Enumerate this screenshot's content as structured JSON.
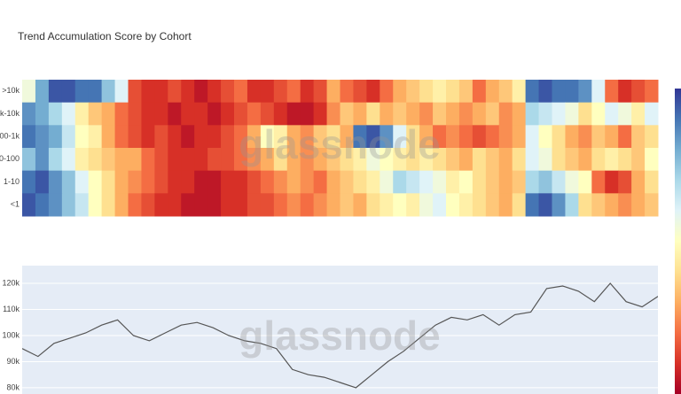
{
  "chart_data": [
    {
      "type": "heatmap",
      "title": "Trend Accumulation Score by Cohort",
      "categories": [
        ">10k",
        "1k-10k",
        "100-1k",
        "10-100",
        "1-10",
        "<1"
      ],
      "colorscale": [
        "#a50026",
        "#d73027",
        "#f46d43",
        "#fdae61",
        "#fee090",
        "#ffffbf",
        "#e0f3f8",
        "#abd9e9",
        "#74add1",
        "#4575b4",
        "#313695"
      ],
      "zlim": [
        0,
        1
      ],
      "watermark": "glassnode",
      "values": [
        [
          0.55,
          0.8,
          0.95,
          0.95,
          0.9,
          0.9,
          0.75,
          0.6,
          0.15,
          0.1,
          0.1,
          0.15,
          0.1,
          0.05,
          0.1,
          0.15,
          0.2,
          0.1,
          0.1,
          0.15,
          0.2,
          0.1,
          0.15,
          0.3,
          0.2,
          0.15,
          0.1,
          0.2,
          0.3,
          0.35,
          0.4,
          0.45,
          0.4,
          0.35,
          0.2,
          0.3,
          0.35,
          0.45,
          0.9,
          0.95,
          0.9,
          0.9,
          0.85,
          0.6,
          0.2,
          0.1,
          0.15,
          0.2
        ],
        [
          0.85,
          0.8,
          0.7,
          0.6,
          0.45,
          0.35,
          0.3,
          0.2,
          0.15,
          0.1,
          0.1,
          0.05,
          0.1,
          0.1,
          0.05,
          0.1,
          0.15,
          0.2,
          0.15,
          0.1,
          0.05,
          0.05,
          0.1,
          0.25,
          0.35,
          0.3,
          0.4,
          0.3,
          0.35,
          0.3,
          0.25,
          0.35,
          0.3,
          0.25,
          0.3,
          0.35,
          0.25,
          0.3,
          0.7,
          0.65,
          0.6,
          0.55,
          0.4,
          0.5,
          0.6,
          0.55,
          0.45,
          0.6
        ],
        [
          0.9,
          0.85,
          0.8,
          0.65,
          0.5,
          0.45,
          0.3,
          0.2,
          0.15,
          0.1,
          0.15,
          0.1,
          0.05,
          0.1,
          0.1,
          0.15,
          0.2,
          0.3,
          0.5,
          0.45,
          0.3,
          0.25,
          0.35,
          0.4,
          0.3,
          0.9,
          0.95,
          0.85,
          0.6,
          0.4,
          0.3,
          0.2,
          0.25,
          0.2,
          0.15,
          0.2,
          0.25,
          0.3,
          0.6,
          0.5,
          0.4,
          0.3,
          0.25,
          0.35,
          0.3,
          0.2,
          0.35,
          0.4
        ],
        [
          0.75,
          0.85,
          0.7,
          0.6,
          0.45,
          0.4,
          0.35,
          0.3,
          0.3,
          0.2,
          0.15,
          0.1,
          0.1,
          0.1,
          0.15,
          0.15,
          0.2,
          0.25,
          0.3,
          0.4,
          0.3,
          0.25,
          0.3,
          0.35,
          0.4,
          0.45,
          0.55,
          0.5,
          0.45,
          0.4,
          0.45,
          0.4,
          0.35,
          0.3,
          0.4,
          0.35,
          0.3,
          0.4,
          0.6,
          0.55,
          0.4,
          0.35,
          0.3,
          0.4,
          0.45,
          0.4,
          0.35,
          0.5
        ],
        [
          0.9,
          0.95,
          0.85,
          0.75,
          0.6,
          0.5,
          0.4,
          0.3,
          0.25,
          0.2,
          0.15,
          0.1,
          0.1,
          0.05,
          0.05,
          0.1,
          0.1,
          0.15,
          0.2,
          0.25,
          0.3,
          0.25,
          0.2,
          0.3,
          0.35,
          0.4,
          0.45,
          0.55,
          0.7,
          0.65,
          0.6,
          0.55,
          0.45,
          0.5,
          0.4,
          0.35,
          0.3,
          0.35,
          0.7,
          0.75,
          0.65,
          0.55,
          0.5,
          0.2,
          0.1,
          0.15,
          0.3,
          0.4
        ],
        [
          0.95,
          0.9,
          0.85,
          0.75,
          0.65,
          0.5,
          0.4,
          0.3,
          0.2,
          0.15,
          0.1,
          0.1,
          0.05,
          0.05,
          0.05,
          0.1,
          0.1,
          0.15,
          0.15,
          0.2,
          0.25,
          0.2,
          0.25,
          0.3,
          0.35,
          0.3,
          0.4,
          0.45,
          0.5,
          0.45,
          0.55,
          0.6,
          0.5,
          0.45,
          0.4,
          0.35,
          0.3,
          0.4,
          0.9,
          0.95,
          0.85,
          0.7,
          0.4,
          0.35,
          0.3,
          0.25,
          0.3,
          0.35
        ]
      ]
    },
    {
      "type": "line",
      "color": "#555555",
      "watermark": "glassnode",
      "grid": true,
      "values": [
        95000,
        92000,
        97000,
        99000,
        101000,
        104000,
        106000,
        100000,
        98000,
        101000,
        104000,
        105000,
        103000,
        100000,
        98000,
        97000,
        95000,
        87000,
        85000,
        84000,
        82000,
        80000,
        85000,
        90000,
        94000,
        99000,
        104000,
        107000,
        106000,
        108000,
        104000,
        108000,
        109000,
        118000,
        119000,
        117000,
        113000,
        120000,
        113000,
        111000,
        115000
      ],
      "ylim": [
        77600,
        126800
      ],
      "yticks": [
        {
          "value": 80000,
          "label": "80k"
        },
        {
          "value": 90000,
          "label": "90k"
        },
        {
          "value": 100000,
          "label": "100k"
        },
        {
          "value": 110000,
          "label": "110k"
        },
        {
          "value": 120000,
          "label": "120k"
        }
      ]
    }
  ]
}
